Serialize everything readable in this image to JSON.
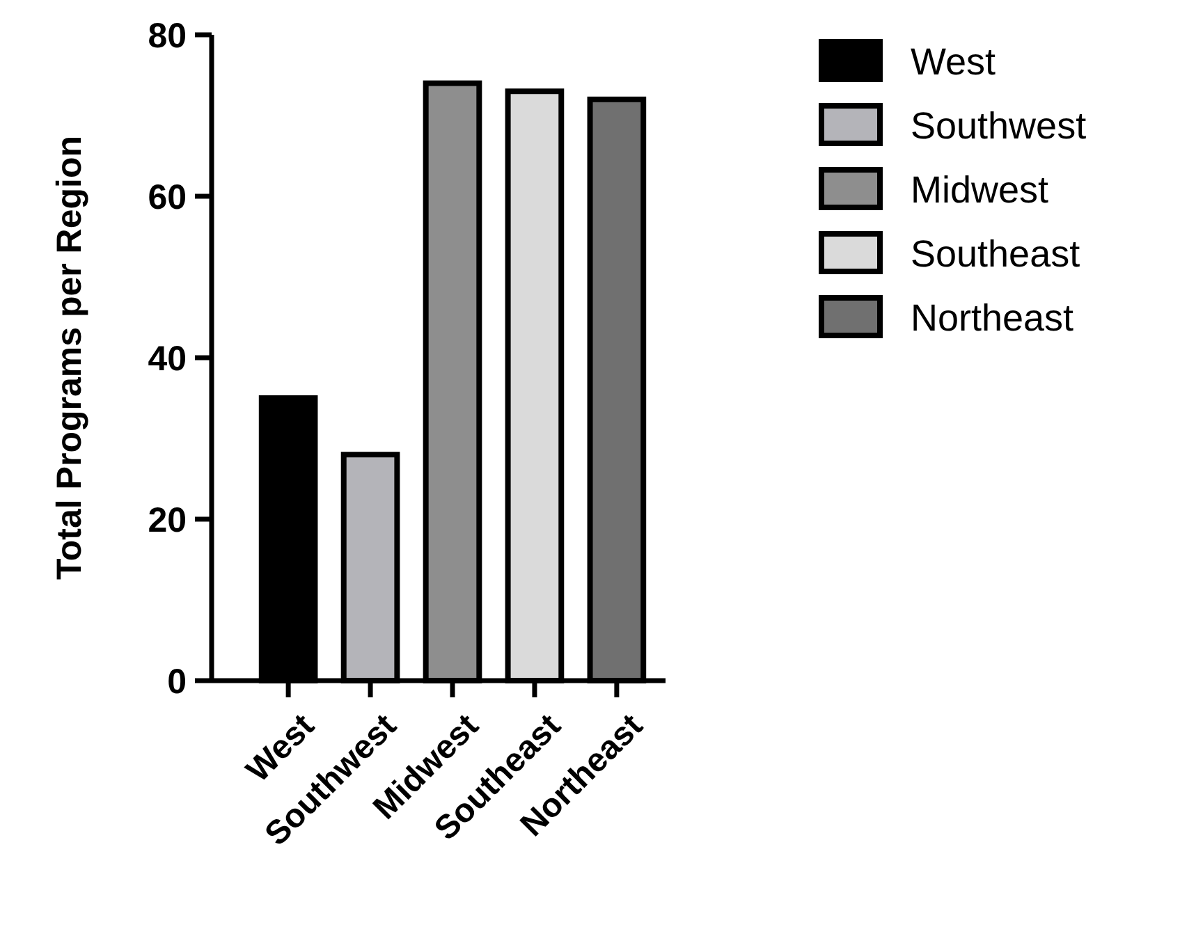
{
  "chart_data": {
    "type": "bar",
    "ylabel": "Total Programs per Region",
    "categories": [
      "West",
      "Southwest",
      "Midwest",
      "Southeast",
      "Northeast"
    ],
    "series": [
      {
        "name": "West",
        "color": "#000000",
        "values": [
          35,
          null,
          null,
          null,
          null
        ]
      },
      {
        "name": "Southwest",
        "color": "#b4b4b9",
        "values": [
          null,
          28,
          null,
          null,
          null
        ]
      },
      {
        "name": "Midwest",
        "color": "#8e8e8e",
        "values": [
          null,
          null,
          74,
          null,
          null
        ]
      },
      {
        "name": "Southeast",
        "color": "#dadada",
        "values": [
          null,
          null,
          null,
          73,
          null
        ]
      },
      {
        "name": "Northeast",
        "color": "#707070",
        "values": [
          null,
          null,
          null,
          null,
          72
        ]
      }
    ],
    "ylim": [
      0,
      80
    ],
    "yticks": [
      0,
      20,
      40,
      60,
      80
    ],
    "grid": false,
    "legend": "top right"
  }
}
